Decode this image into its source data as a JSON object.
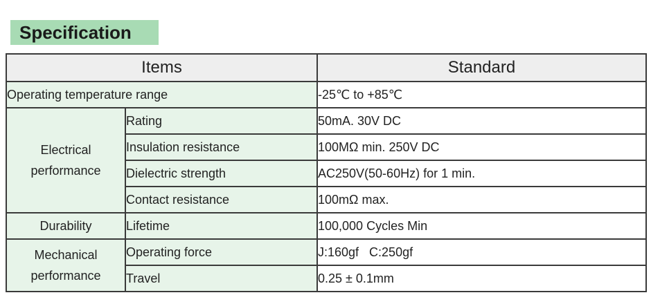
{
  "title": "Specification",
  "headers": {
    "items": "Items",
    "standard": "Standard"
  },
  "rows": {
    "temperature": {
      "label": "Operating temperature range",
      "value": "-25℃ to +85℃"
    },
    "electrical": {
      "group_line1": "Electrical",
      "group_line2": "performance",
      "rating": {
        "label": "Rating",
        "value": "50mA. 30V DC"
      },
      "insulation": {
        "label": "Insulation resistance",
        "value": "100MΩ min. 250V DC"
      },
      "dielectric": {
        "label": "Dielectric strength",
        "value": "AC250V(50-60Hz)  for 1 min."
      },
      "contact": {
        "label": "Contact resistance",
        "value": "100mΩ max."
      }
    },
    "durability": {
      "group": "Durability",
      "lifetime": {
        "label": "Lifetime",
        "value": "100,000 Cycles Min"
      }
    },
    "mechanical": {
      "group_line1": "Mechanical",
      "group_line2": "performance",
      "force": {
        "label": "Operating force",
        "value": "J:160gf   C:250gf"
      },
      "travel": {
        "label": "Travel",
        "value": "0.25 ± 0.1mm"
      }
    }
  }
}
